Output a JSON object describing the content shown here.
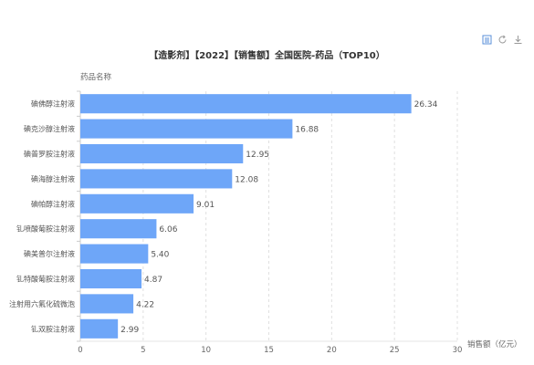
{
  "toolbox": {
    "icons": [
      "data-view-icon",
      "restore-icon",
      "save-image-icon"
    ],
    "color": "#5a8fd8"
  },
  "chart_data": {
    "type": "bar",
    "orientation": "horizontal",
    "title": "【造影剂】【2022】【销售额】全国医院-药品（TOP10）",
    "ylabel": "药品名称",
    "xlabel": "销售额（亿元）",
    "categories": [
      "碘佛醇注射液",
      "碘克沙醇注射液",
      "碘普罗胺注射液",
      "碘海醇注射液",
      "碘帕醇注射液",
      "钆喷酸葡胺注射液",
      "碘美普尔注射液",
      "钆特酸葡胺注射液",
      "注射用六氟化硫微泡",
      "钆双胺注射液"
    ],
    "values": [
      26.34,
      16.88,
      12.95,
      12.08,
      9.01,
      6.06,
      5.4,
      4.87,
      4.22,
      2.99
    ],
    "value_labels": [
      "26.34",
      "16.88",
      "12.95",
      "12.08",
      "9.01",
      "6.06",
      "5.40",
      "4.87",
      "4.22",
      "2.99"
    ],
    "xlim": [
      0,
      30
    ],
    "xticks": [
      "0",
      "5",
      "10",
      "15",
      "20",
      "25",
      "30"
    ],
    "grid": "vertical dashed",
    "bar_color": "#6ea6f8"
  }
}
